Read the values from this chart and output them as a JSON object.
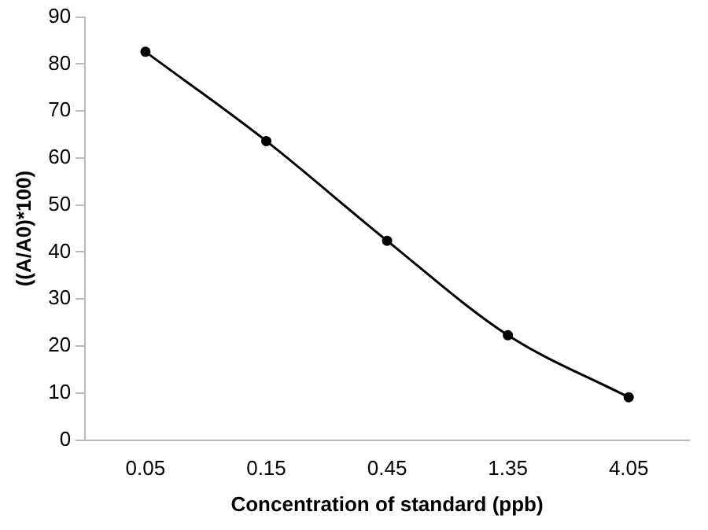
{
  "chart_data": {
    "type": "line",
    "xlabel": "Concentration of standard (ppb)",
    "ylabel": "((A/A0)*100)",
    "categories": [
      "0.05",
      "0.15",
      "0.45",
      "1.35",
      "4.05"
    ],
    "series": [
      {
        "color": "#000000",
        "values": [
          82.6,
          63.6,
          42.4,
          22.3,
          9.1
        ]
      }
    ],
    "ylim": [
      0,
      90
    ],
    "yticks": [
      0,
      10,
      20,
      30,
      40,
      50,
      60,
      70,
      80,
      90
    ],
    "grid": false,
    "legend": false,
    "marker": "circle",
    "line_style": "solid"
  }
}
